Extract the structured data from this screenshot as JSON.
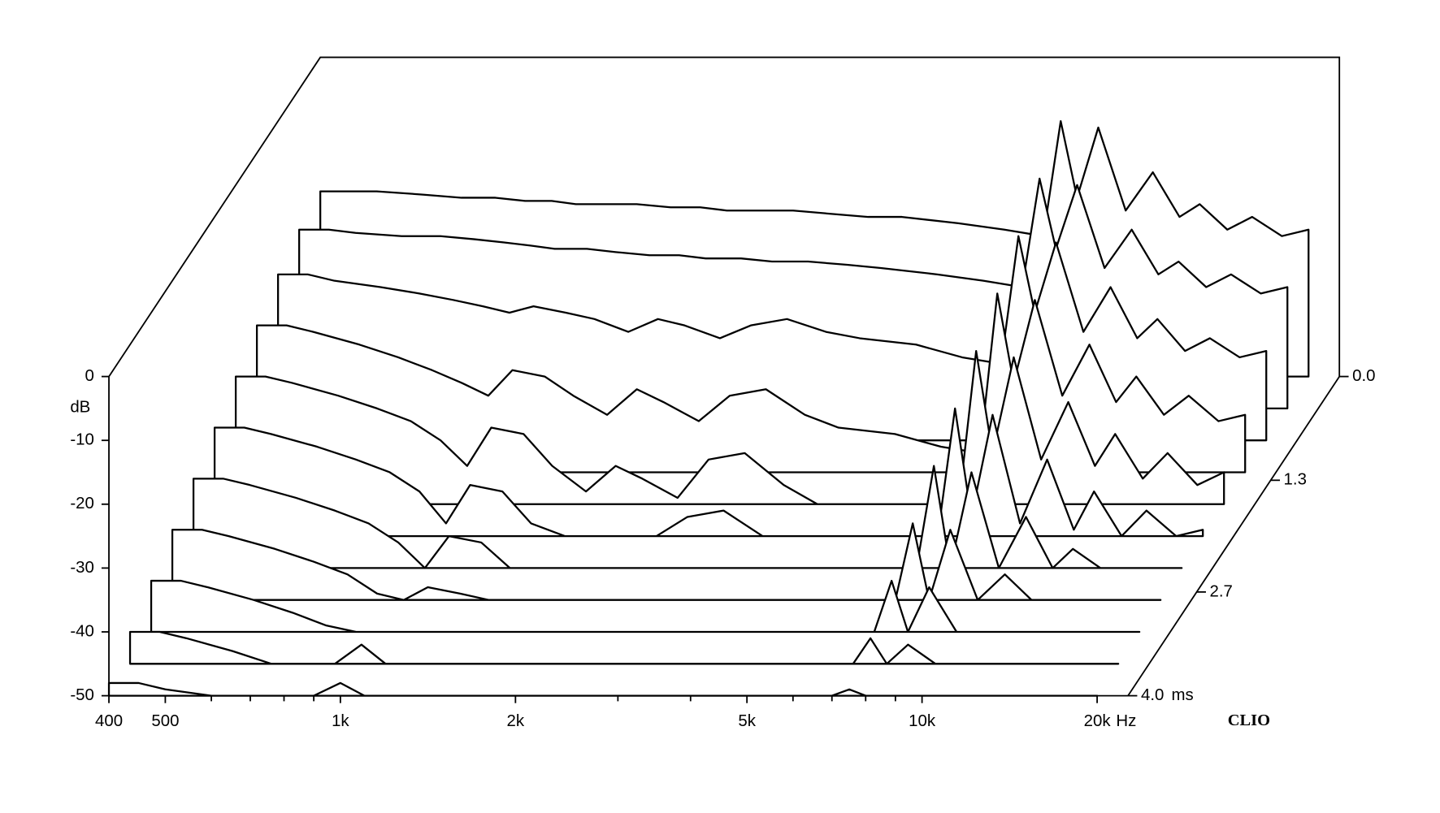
{
  "chart_data": {
    "type": "waterfall",
    "y_label": "dB",
    "x_unit": "Hz",
    "z_unit": "ms",
    "brand": "CLIO",
    "color": "#000000",
    "xscale": "log",
    "xlim": [
      400,
      22600
    ],
    "ylim": [
      -50,
      0
    ],
    "zlim": [
      0,
      4
    ],
    "xticks": [
      400,
      500,
      {
        "value": 1000,
        "label": "1k"
      },
      {
        "value": 2000,
        "label": "2k"
      },
      {
        "value": 5000,
        "label": "5k"
      },
      {
        "value": 10000,
        "label": "10k"
      },
      {
        "value": 20000,
        "label": "20k"
      }
    ],
    "xminor_ticks": [
      600,
      700,
      800,
      900,
      3000,
      4000,
      6000,
      7000,
      8000,
      9000
    ],
    "yticks": [
      0,
      -10,
      -20,
      -30,
      -40,
      -50
    ],
    "zticks": [
      {
        "value": 0,
        "label": "0.0"
      },
      1.3,
      2.7,
      {
        "value": 4,
        "label": "4.0"
      }
    ],
    "x": [
      400,
      450,
      500,
      600,
      700,
      800,
      900,
      1000,
      1100,
      1250,
      1400,
      1600,
      1800,
      2000,
      2300,
      2600,
      3000,
      3500,
      4000,
      5000,
      6000,
      7000,
      7500,
      8000,
      8700,
      9700,
      10800,
      12000,
      13000,
      14500,
      16000,
      18000,
      20000
    ],
    "z": [
      0,
      0.4,
      0.8,
      1.2,
      1.6,
      2.0,
      2.4,
      2.8,
      3.2,
      3.6,
      4.0
    ],
    "series": [
      {
        "values": [
          -21,
          -21,
          -21,
          -21.5,
          -22,
          -22,
          -22.5,
          -22.5,
          -23,
          -23,
          -23,
          -23.5,
          -23.5,
          -24,
          -24,
          -24,
          -24.5,
          -25,
          -25,
          -26,
          -27,
          -28,
          -10,
          -22,
          -11,
          -24,
          -18,
          -25,
          -23,
          -27,
          -25,
          -28,
          -27
        ]
      },
      {
        "values": [
          -22,
          -22,
          -22.5,
          -23,
          -23,
          -23.5,
          -24,
          -24.5,
          -25,
          -25,
          -25.5,
          -26,
          -26,
          -26.5,
          -26.5,
          -27,
          -27,
          -27.5,
          -28,
          -29,
          -30,
          -31,
          -14,
          -25,
          -15,
          -28,
          -22,
          -29,
          -27,
          -31,
          -29,
          -32,
          -31
        ]
      },
      {
        "values": [
          -24,
          -24,
          -25,
          -26,
          -27,
          -28,
          -29,
          -30,
          -29,
          -30,
          -31,
          -33,
          -31,
          -32,
          -34,
          -32,
          -31,
          -33,
          -34,
          -35,
          -37,
          -38,
          -18,
          -30,
          -19,
          -33,
          -26,
          -34,
          -31,
          -36,
          -34,
          -37,
          -36
        ]
      },
      {
        "values": [
          -27,
          -27,
          -28,
          -30,
          -32,
          -34,
          -36,
          -38,
          -34,
          -35,
          -38,
          -41,
          -37,
          -39,
          -42,
          -38,
          -37,
          -41,
          -43,
          -44,
          -46,
          -47,
          -22,
          -36,
          -23,
          -38,
          -30,
          -39,
          -35,
          -41,
          -38,
          -42,
          -41
        ]
      },
      {
        "values": [
          -30,
          -30,
          -31,
          -33,
          -35,
          -37,
          -40,
          -44,
          -38,
          -39,
          -44,
          -48,
          -44,
          -46,
          -49,
          -43,
          -42,
          -47,
          -50,
          -50,
          -50,
          -50,
          -26,
          -42,
          -27,
          -43,
          -34,
          -44,
          -39,
          -46,
          -42,
          -47,
          -45
        ]
      },
      {
        "values": [
          -33,
          -33,
          -34,
          -36,
          -38,
          -40,
          -43,
          -48,
          -42,
          -43,
          -48,
          -50,
          -50,
          -50,
          -50,
          -47,
          -46,
          -50,
          -50,
          -50,
          -50,
          -50,
          -30,
          -47,
          -31,
          -48,
          -38,
          -49,
          -43,
          -50,
          -46,
          -50,
          -49
        ]
      },
      {
        "values": [
          -36,
          -36,
          -37,
          -39,
          -41,
          -43,
          -46,
          -50,
          -45,
          -46,
          -50,
          -50,
          -50,
          -50,
          -50,
          -50,
          -50,
          -50,
          -50,
          -50,
          -50,
          -50,
          -34,
          -50,
          -35,
          -50,
          -42,
          -50,
          -47,
          -50,
          -50,
          -50,
          -50
        ]
      },
      {
        "values": [
          -39,
          -39,
          -40,
          -42,
          -44,
          -46,
          -49,
          -50,
          -48,
          -49,
          -50,
          -50,
          -50,
          -50,
          -50,
          -50,
          -50,
          -50,
          -50,
          -50,
          -50,
          -50,
          -38,
          -50,
          -39,
          -50,
          -46,
          -50,
          -50,
          -50,
          -50,
          -50,
          -50
        ]
      },
      {
        "values": [
          -42,
          -42,
          -43,
          -45,
          -47,
          -49,
          -50,
          -50,
          -50,
          -50,
          -50,
          -50,
          -50,
          -50,
          -50,
          -50,
          -50,
          -50,
          -50,
          -50,
          -50,
          -50,
          -42,
          -50,
          -43,
          -50,
          -50,
          -50,
          -50,
          -50,
          -50,
          -50,
          -50
        ]
      },
      {
        "values": [
          -45,
          -45,
          -46,
          -48,
          -50,
          -50,
          -50,
          -47,
          -50,
          -50,
          -50,
          -50,
          -50,
          -50,
          -50,
          -50,
          -50,
          -50,
          -50,
          -50,
          -50,
          -50,
          -46,
          -50,
          -47,
          -50,
          -50,
          -50,
          -50,
          -50,
          -50,
          -50,
          -50
        ]
      },
      {
        "values": [
          -48,
          -48,
          -49,
          -50,
          -50,
          -50,
          -50,
          -48,
          -50,
          -50,
          -50,
          -50,
          -50,
          -50,
          -50,
          -50,
          -50,
          -50,
          -50,
          -50,
          -50,
          -50,
          -49,
          -50,
          -50,
          -50,
          -50,
          -50,
          -50,
          -50,
          -50,
          -50,
          -50
        ]
      }
    ]
  }
}
